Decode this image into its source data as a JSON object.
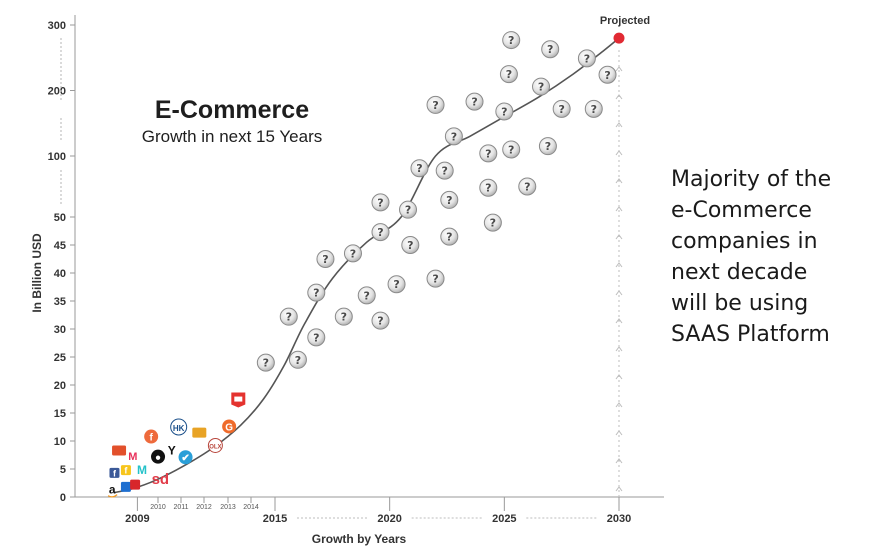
{
  "heading": {
    "title": "E-Commerce",
    "subtitle": "Growth in next 15 Years"
  },
  "side_note": {
    "lines": [
      "Majority of the",
      "e-Commerce",
      "companies in",
      "next decade",
      "will be using",
      "SAAS Platform"
    ]
  },
  "chart_data": {
    "type": "scatter",
    "title": "E-Commerce",
    "subtitle": "Growth in next 15 Years",
    "xlabel": "Growth by Years",
    "ylabel": "In Billion USD",
    "y_scale": "broken: linear 0-50 below, compressed 50-300 above",
    "ylim": [
      0,
      300
    ],
    "xlim": [
      2007.3,
      2031.5
    ],
    "y_ticks": [
      0,
      5,
      10,
      15,
      20,
      25,
      30,
      35,
      40,
      45,
      50,
      100,
      200,
      300
    ],
    "x_ticks_major": [
      2009,
      2015,
      2020,
      2025,
      2030
    ],
    "x_ticks_minor": [
      2010,
      2011,
      2012,
      2013,
      2014
    ],
    "grid": false,
    "annotation": "Projected",
    "projected_point": {
      "x": 2030,
      "y": 280
    },
    "trend_line": {
      "x": [
        2008,
        2008.8,
        2009.8,
        2011,
        2012.3,
        2013.5,
        2014.5,
        2015.4,
        2016.3,
        2017.5,
        2019,
        2020.5,
        2022,
        2023.5,
        2025,
        2026.5,
        2028,
        2029.3,
        2030
      ],
      "y": [
        0.8,
        1.5,
        3,
        5.5,
        8.8,
        12.8,
        17.5,
        23.5,
        31,
        39,
        45.5,
        50,
        100,
        130,
        160,
        190,
        225,
        260,
        280
      ]
    },
    "company_logos": [
      {
        "name": "amazon",
        "mark": "a",
        "x": 2007.9,
        "y": 1.5,
        "color": "#111111"
      },
      {
        "name": "homeshop18",
        "mark": "▣",
        "x": 2008.5,
        "y": 1.8,
        "color": "#1e6fd0"
      },
      {
        "name": "firstcry",
        "mark": "▣",
        "x": 2008.9,
        "y": 2.2,
        "color": "#d8262b"
      },
      {
        "name": "facebook",
        "mark": "f",
        "x": 2008,
        "y": 4.3,
        "color": "#3b5998"
      },
      {
        "name": "flipkart",
        "mark": "f",
        "x": 2008.5,
        "y": 4.8,
        "color": "#f7c51b"
      },
      {
        "name": "meesho",
        "mark": "M",
        "x": 2009.2,
        "y": 5,
        "color": "#24c2c9"
      },
      {
        "name": "myntra",
        "mark": "M",
        "x": 2008.8,
        "y": 7.5,
        "color": "#e8315b"
      },
      {
        "name": "snapdeal-box",
        "mark": "▬",
        "x": 2008.2,
        "y": 8.3,
        "color": "#e2502b"
      },
      {
        "name": "snapdeal",
        "mark": "sd",
        "x": 2010,
        "y": 3.2,
        "color": "#e23c49"
      },
      {
        "name": "olacabs",
        "mark": "●",
        "x": 2009.9,
        "y": 7.2,
        "color": "#111111"
      },
      {
        "name": "freecharge",
        "mark": "f",
        "x": 2009.6,
        "y": 10.8,
        "color": "#ee6a3c"
      },
      {
        "name": "yebhi",
        "mark": "Y",
        "x": 2010.5,
        "y": 8.5,
        "color": "#111111"
      },
      {
        "name": "healthkart",
        "mark": "HK",
        "x": 2010.8,
        "y": 12.5,
        "color": "#1a4f8a"
      },
      {
        "name": "justdial",
        "mark": "✔",
        "x": 2011.1,
        "y": 7.1,
        "color": "#2a9fd8"
      },
      {
        "name": "zomato",
        "mark": "▬",
        "x": 2011.7,
        "y": 11.5,
        "color": "#e8a325"
      },
      {
        "name": "olx",
        "mark": "OLX",
        "x": 2012.4,
        "y": 9.2,
        "color": "#b8463c"
      },
      {
        "name": "grofers",
        "mark": "G",
        "x": 2013,
        "y": 12.6,
        "color": "#ef6b2b"
      },
      {
        "name": "bigbasket",
        "mark": "▲",
        "x": 2013.4,
        "y": 17.4,
        "color": "#e4332f"
      }
    ],
    "unknown_companies": [
      {
        "x": 2014.6,
        "y": 24
      },
      {
        "x": 2016,
        "y": 24.5
      },
      {
        "x": 2015.6,
        "y": 32.2
      },
      {
        "x": 2016.8,
        "y": 28.5
      },
      {
        "x": 2016.8,
        "y": 36.5
      },
      {
        "x": 2017.2,
        "y": 42.5
      },
      {
        "x": 2018,
        "y": 32.2
      },
      {
        "x": 2018.4,
        "y": 43.5
      },
      {
        "x": 2019,
        "y": 36
      },
      {
        "x": 2019.6,
        "y": 31.5
      },
      {
        "x": 2019.6,
        "y": 47.3
      },
      {
        "x": 2020.3,
        "y": 38
      },
      {
        "x": 2020.9,
        "y": 45
      },
      {
        "x": 2019.6,
        "y": 62
      },
      {
        "x": 2020.8,
        "y": 56
      },
      {
        "x": 2021.3,
        "y": 90
      },
      {
        "x": 2022,
        "y": 39
      },
      {
        "x": 2022.6,
        "y": 46.5
      },
      {
        "x": 2022.4,
        "y": 88
      },
      {
        "x": 2022.6,
        "y": 64
      },
      {
        "x": 2022,
        "y": 178
      },
      {
        "x": 2022.8,
        "y": 130
      },
      {
        "x": 2023.7,
        "y": 183
      },
      {
        "x": 2024.3,
        "y": 104
      },
      {
        "x": 2024.3,
        "y": 74
      },
      {
        "x": 2024.5,
        "y": 49
      },
      {
        "x": 2025,
        "y": 168
      },
      {
        "x": 2025.2,
        "y": 225
      },
      {
        "x": 2025.3,
        "y": 110
      },
      {
        "x": 2025.3,
        "y": 277
      },
      {
        "x": 2026,
        "y": 75
      },
      {
        "x": 2026.6,
        "y": 206
      },
      {
        "x": 2026.9,
        "y": 115
      },
      {
        "x": 2027,
        "y": 263
      },
      {
        "x": 2027.5,
        "y": 172
      },
      {
        "x": 2028.6,
        "y": 249
      },
      {
        "x": 2028.9,
        "y": 172
      },
      {
        "x": 2029.5,
        "y": 224
      }
    ]
  }
}
